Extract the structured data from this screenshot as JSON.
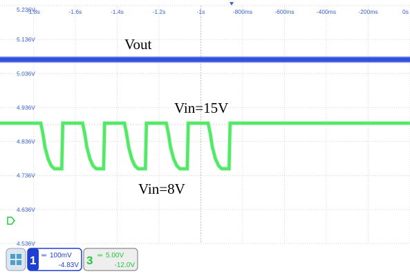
{
  "chart_data": {
    "type": "line",
    "x_tick_labels": [
      "-1.8s",
      "-1.6s",
      "-1.4s",
      "-1.2s",
      "-1s",
      "-800ms",
      "-600ms",
      "-400ms",
      "-200ms",
      "0s"
    ],
    "y_tick_labels": [
      "5.236V",
      "5.136V",
      "5.036V",
      "4.936V",
      "4.836V",
      "4.736V",
      "4.636V",
      "4.536V"
    ],
    "xlim": [
      -1.96,
      0
    ],
    "ylim": [
      4.536,
      5.236
    ],
    "grid": true,
    "annotations": [
      "Vout",
      "Vin=15V",
      "Vin=8V"
    ],
    "series": [
      {
        "color": "#1f3fd0",
        "x": [
          -1.96,
          0
        ],
        "y": [
          5.077,
          5.077
        ]
      },
      {
        "color": "#22e03a",
        "x": [
          -1.96,
          -1.765,
          -1.755,
          -1.745,
          -1.73,
          -1.715,
          -1.7,
          -1.665,
          -1.66,
          -1.565,
          -1.555,
          -1.545,
          -1.53,
          -1.515,
          -1.5,
          -1.465,
          -1.46,
          -1.365,
          -1.355,
          -1.345,
          -1.33,
          -1.315,
          -1.3,
          -1.265,
          -1.26,
          -1.165,
          -1.155,
          -1.145,
          -1.13,
          -1.115,
          -1.1,
          -1.065,
          -1.06,
          -0.965,
          -0.955,
          -0.945,
          -0.93,
          -0.915,
          -0.9,
          -0.865,
          -0.86,
          0
        ],
        "y": [
          4.89,
          4.89,
          4.86,
          4.82,
          4.785,
          4.765,
          4.756,
          4.756,
          4.89,
          4.89,
          4.86,
          4.82,
          4.785,
          4.765,
          4.756,
          4.756,
          4.89,
          4.89,
          4.86,
          4.82,
          4.785,
          4.765,
          4.756,
          4.756,
          4.89,
          4.89,
          4.86,
          4.82,
          4.785,
          4.765,
          4.756,
          4.756,
          4.89,
          4.89,
          4.86,
          4.82,
          4.785,
          4.765,
          4.756,
          4.756,
          4.89,
          4.89
        ]
      }
    ]
  },
  "channels": [
    {
      "number": "1",
      "scale": "100mV",
      "offset": "-4.83V",
      "color": "#1f3fd0"
    },
    {
      "number": "3",
      "scale": "5.00V",
      "offset": "-12.0V",
      "color": "#22c83a"
    }
  ],
  "icons": {
    "menu": "grid-menu-icon",
    "ground_marker": "ground-marker-icon",
    "trigger_marker": "trigger-marker-icon"
  },
  "colors": {
    "grid": "#c8c8c8",
    "tick_text": "#3a5fd0",
    "ch1": "#1f3fd0",
    "ch3": "#22e03a"
  }
}
